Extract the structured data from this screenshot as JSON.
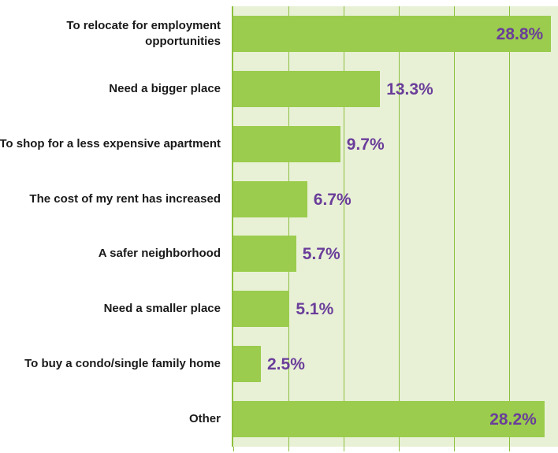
{
  "chart_data": {
    "type": "bar",
    "orientation": "horizontal",
    "categories": [
      "To relocate for employment opportunities",
      "Need a bigger place",
      "To shop for a less expensive apartment",
      "The cost of my rent has increased",
      "A safer neighborhood",
      "Need a smaller place",
      "To buy a condo/single family home",
      "Other"
    ],
    "values": [
      28.8,
      13.3,
      9.7,
      6.7,
      5.7,
      5.1,
      2.5,
      28.2
    ],
    "value_labels": [
      "28.8%",
      "13.3%",
      "9.7%",
      "6.7%",
      "5.7%",
      "5.1%",
      "2.5%",
      "28.2%"
    ],
    "xlim": [
      0,
      30
    ],
    "grid": true,
    "colors": {
      "bar": "#9bcc4d",
      "plot_background": "#e8f1d6",
      "gridline": "#8dbf3e",
      "value_label": "#6a3d9a",
      "category_label": "#1a1a1a"
    }
  }
}
